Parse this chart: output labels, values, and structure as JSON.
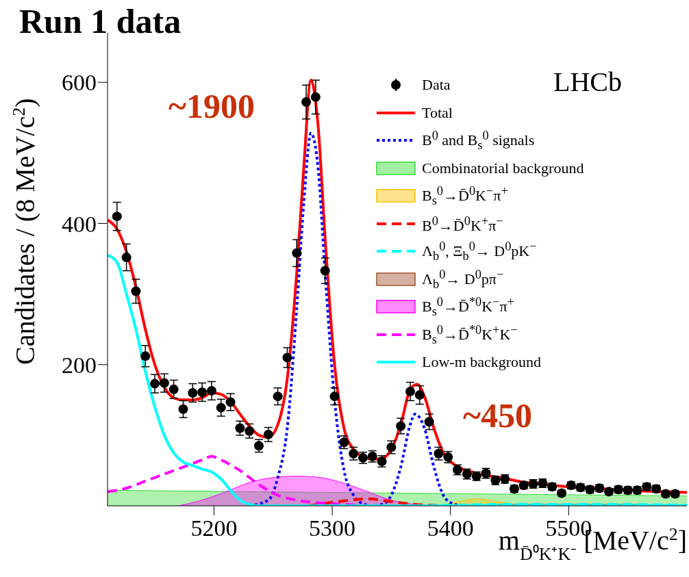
{
  "chart_data": {
    "type": "line",
    "title": "Run 1 data",
    "xlabel": "m$_{D̄⁰K⁺K⁻}$ [MeV/c$^{2}$]",
    "ylabel": "Candidates / (8 MeV/c$^{2}$)",
    "xlim": [
      5110,
      5600
    ],
    "xticks": [
      5200,
      5300,
      5400,
      5500
    ],
    "ylim": [
      0,
      670
    ],
    "yticks": [
      200,
      400,
      600
    ],
    "grid": false,
    "legend": "top right",
    "annotations": [
      "~1900",
      "~450",
      "LHCb"
    ],
    "series": [
      {
        "name": "Data",
        "type": "scatter",
        "marker": "circle",
        "color": "#000000",
        "x": [
          5118,
          5126,
          5134,
          5142,
          5150,
          5158,
          5166,
          5174,
          5182,
          5190,
          5198,
          5206,
          5214,
          5222,
          5230,
          5238,
          5246,
          5254,
          5262,
          5270,
          5278,
          5286,
          5294,
          5302,
          5310,
          5318,
          5326,
          5334,
          5342,
          5350,
          5358,
          5366,
          5374,
          5382,
          5390,
          5398,
          5406,
          5414,
          5422,
          5430,
          5438,
          5446,
          5454,
          5462,
          5470,
          5478,
          5486,
          5494,
          5502,
          5510,
          5518,
          5526,
          5534,
          5542,
          5550,
          5558,
          5566,
          5574,
          5582,
          5590
        ],
        "values": [
          410,
          352,
          304,
          212,
          173,
          174,
          165,
          137,
          160,
          161,
          163,
          139,
          147,
          110,
          106,
          85,
          101,
          155,
          210,
          358,
          572,
          579,
          333,
          155,
          90,
          74,
          68,
          70,
          63,
          83,
          113,
          162,
          157,
          119,
          74,
          69,
          51,
          45,
          42,
          46,
          36,
          38,
          24,
          29,
          31,
          32,
          27,
          18,
          29,
          26,
          23,
          25,
          20,
          23,
          22,
          22,
          27,
          24,
          17,
          17
        ],
        "errors": [
          20,
          19,
          17,
          15,
          13,
          13,
          13,
          12,
          13,
          13,
          13,
          12,
          12,
          10,
          10,
          9,
          10,
          12,
          14,
          19,
          24,
          24,
          18,
          12,
          9,
          9,
          8,
          8,
          8,
          9,
          11,
          13,
          13,
          11,
          9,
          8,
          7,
          7,
          6,
          7,
          6,
          6,
          5,
          5,
          6,
          6,
          5,
          4,
          5,
          5,
          5,
          5,
          4,
          5,
          5,
          5,
          5,
          5,
          4,
          4
        ]
      },
      {
        "name": "Total",
        "line_style": "solid",
        "color": "#ff0000",
        "x": [
          5110,
          5118,
          5126,
          5134,
          5142,
          5150,
          5158,
          5166,
          5174,
          5182,
          5190,
          5198,
          5206,
          5214,
          5222,
          5230,
          5238,
          5246,
          5254,
          5262,
          5270,
          5276,
          5282,
          5288,
          5294,
          5302,
          5310,
          5318,
          5326,
          5334,
          5342,
          5350,
          5358,
          5366,
          5372,
          5378,
          5386,
          5394,
          5402,
          5410,
          5418,
          5426,
          5434,
          5442,
          5460,
          5480,
          5500,
          5520,
          5540,
          5560,
          5580,
          5600
        ],
        "values": [
          405,
          392,
          360,
          310,
          250,
          200,
          168,
          153,
          150,
          150,
          153,
          160,
          158,
          148,
          130,
          113,
          100,
          97,
          115,
          180,
          330,
          480,
          603,
          540,
          380,
          200,
          110,
          80,
          70,
          66,
          67,
          80,
          115,
          165,
          172,
          155,
          110,
          75,
          60,
          52,
          48,
          44,
          42,
          40,
          34,
          30,
          27,
          25,
          23,
          21,
          20,
          19
        ]
      },
      {
        "name": "B$^{0}$ and B$_{s}$$^{0}$ signals",
        "line_style": "dotted",
        "color": "#0000ff",
        "x": [
          5230,
          5246,
          5254,
          5262,
          5270,
          5276,
          5282,
          5288,
          5294,
          5302,
          5310,
          5318,
          5326,
          5334,
          5342,
          5350,
          5358,
          5366,
          5370,
          5378,
          5386,
          5394,
          5402,
          5410
        ],
        "values": [
          0,
          8,
          40,
          110,
          280,
          430,
          528,
          480,
          330,
          150,
          50,
          15,
          3,
          0,
          2,
          15,
          55,
          115,
          130,
          110,
          55,
          15,
          3,
          0
        ]
      },
      {
        "name": "Combinatorial background",
        "type": "area",
        "color": "#33dd33",
        "x": [
          5110,
          5600
        ],
        "values": [
          22,
          14
        ]
      },
      {
        "name": "B$_{s}$$^{0}$→D̄$^{0}$K$^{−}$π$^{+}$",
        "type": "area",
        "color": "#ffc000",
        "x": [
          5390,
          5410,
          5420,
          5440,
          5460
        ],
        "values": [
          0,
          7,
          10,
          6,
          0
        ]
      },
      {
        "name": "B$^{0}$→D̄$^{0}$K$^{+}$π$^{−}$",
        "line_style": "dashed",
        "color": "#ff0000",
        "x": [
          5280,
          5310,
          5330,
          5350,
          5370,
          5400
        ],
        "values": [
          0,
          7,
          10,
          6,
          2,
          0
        ]
      },
      {
        "name": "Λ$_{b}$$^{0}$, Ξ$_{b}$$^{0}$→ D$^{0}$pK$^{−}$",
        "line_style": "dashed",
        "color": "#00ffff",
        "x": [
          5380,
          5450,
          5520,
          5600
        ],
        "values": [
          0,
          2,
          2,
          1
        ]
      },
      {
        "name": "Λ$_{b}$$^{0}$→ D$^{0}$pπ$^{−}$",
        "type": "area",
        "color": "#a0522d",
        "x": [
          5400,
          5450,
          5550,
          5600
        ],
        "values": [
          0,
          2,
          2,
          0
        ]
      },
      {
        "name": "B$_{s}$$^{0}$→D̄$^{*0}$K$^{−}$π$^{+}$",
        "type": "area",
        "color": "#ff00ff",
        "x": [
          5170,
          5190,
          5210,
          5230,
          5250,
          5270,
          5290,
          5310,
          5330,
          5350,
          5370,
          5390
        ],
        "values": [
          0,
          8,
          20,
          33,
          40,
          42,
          40,
          32,
          20,
          8,
          2,
          0
        ]
      },
      {
        "name": "B$_{s}$$^{0}$→D̄$^{*0}$K$^{+}$K$^{−}$",
        "line_style": "dashed",
        "color": "#ff00ff",
        "x": [
          5110,
          5126,
          5142,
          5158,
          5174,
          5190,
          5198,
          5206,
          5222,
          5238,
          5254,
          5270,
          5290,
          5310,
          5330
        ],
        "values": [
          20,
          25,
          35,
          45,
          55,
          65,
          70,
          65,
          50,
          30,
          15,
          8,
          4,
          2,
          0
        ]
      },
      {
        "name": "Low-m background",
        "line_style": "solid",
        "color": "#00ffff",
        "x": [
          5110,
          5118,
          5126,
          5134,
          5142,
          5150,
          5158,
          5166,
          5174,
          5182,
          5190,
          5198,
          5206,
          5214,
          5222,
          5230,
          5238,
          5600
        ],
        "values": [
          355,
          345,
          300,
          250,
          190,
          140,
          100,
          75,
          62,
          57,
          52,
          48,
          38,
          22,
          8,
          2,
          0,
          0
        ]
      }
    ]
  }
}
